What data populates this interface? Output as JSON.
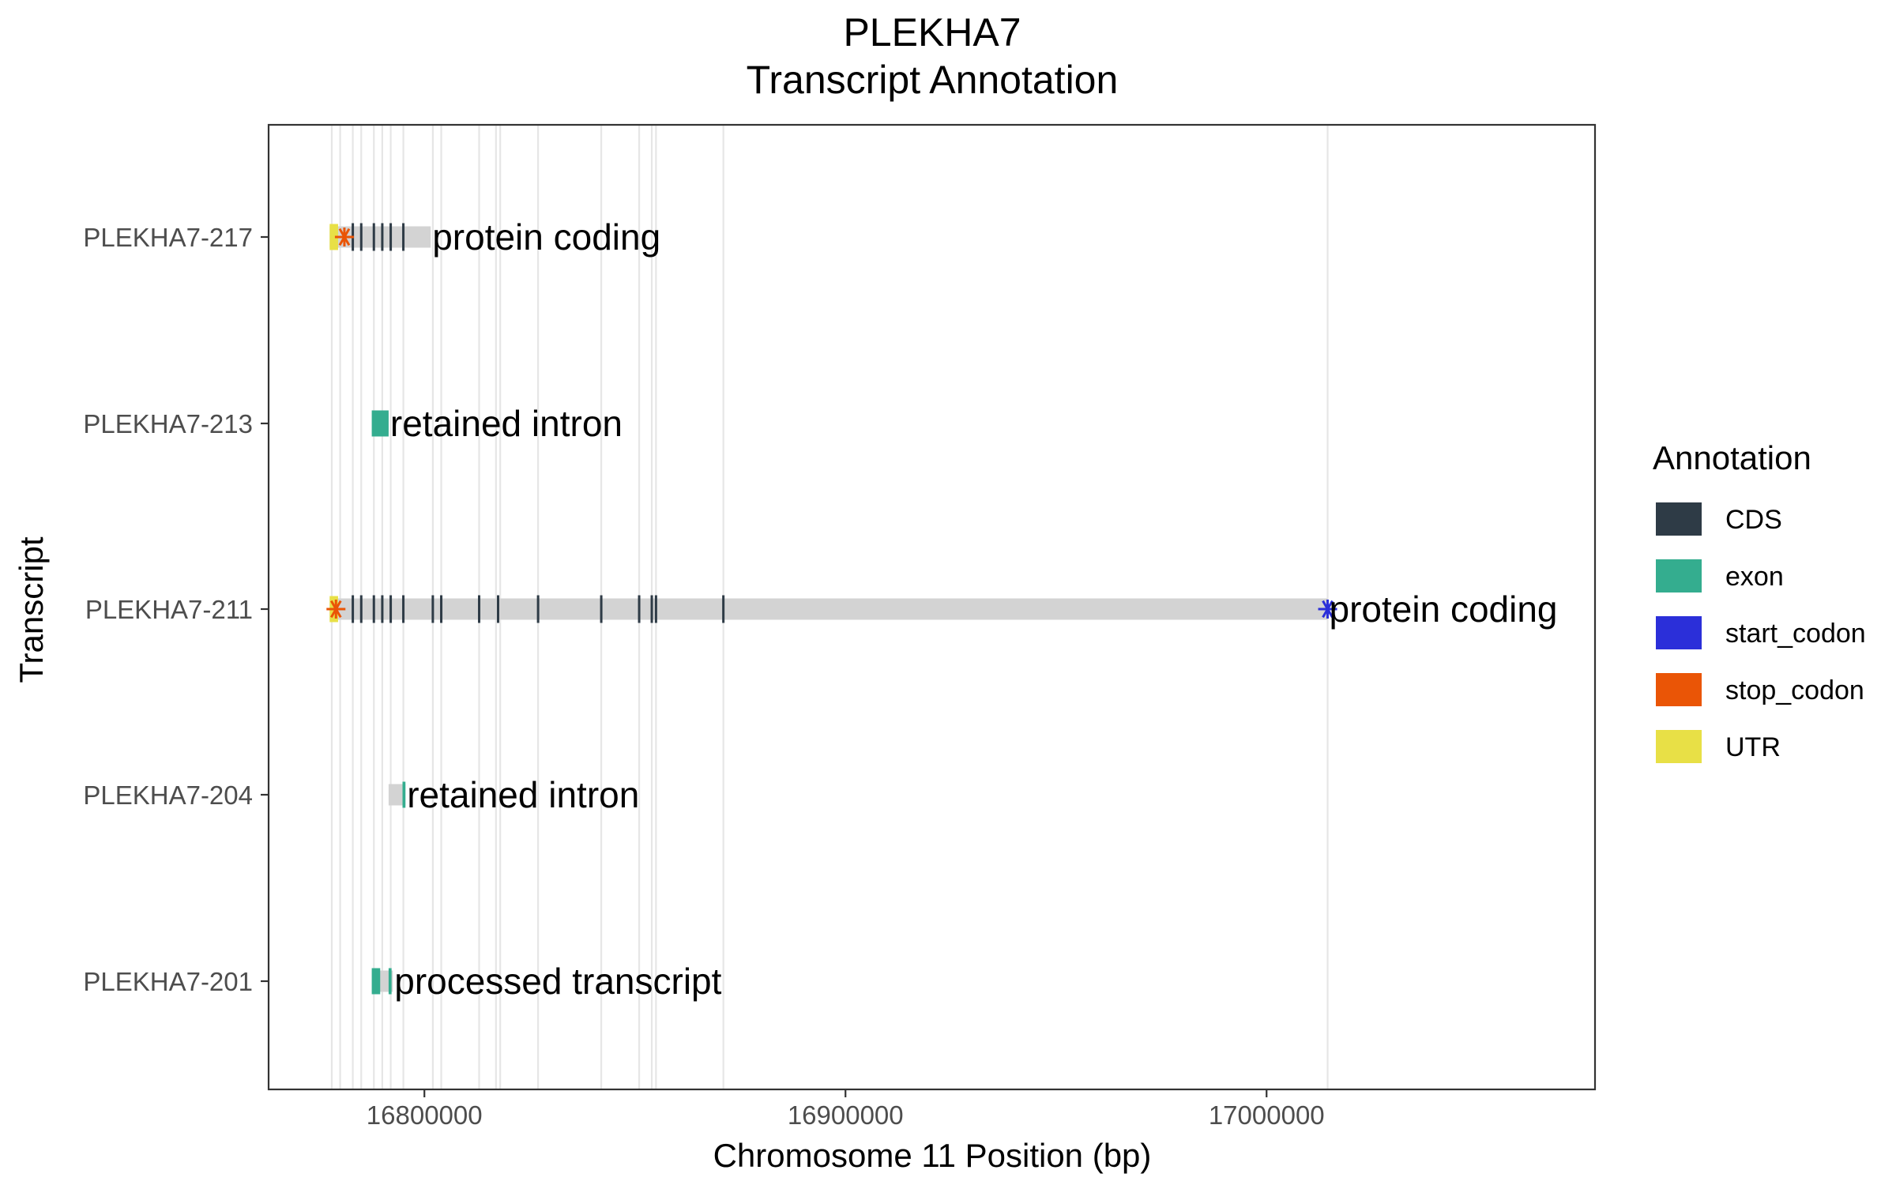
{
  "chart_data": {
    "type": "gantt-transcript",
    "title": "PLEKHA7",
    "subtitle": "Transcript Annotation",
    "xlabel": "Chromosome 11 Position (bp)",
    "ylabel": "Transcript",
    "xlim": [
      16763000,
      17078000
    ],
    "x_ticks": [
      16800000,
      16900000,
      17000000
    ],
    "x_tick_labels": [
      "16800000",
      "16900000",
      "17000000"
    ],
    "grid": "vertical-lines-at-feature-boundaries",
    "legend_position": "right",
    "legend": {
      "title": "Annotation",
      "entries": [
        {
          "label": "CDS",
          "color": "#2e3b46"
        },
        {
          "label": "exon",
          "color": "#34ad8f"
        },
        {
          "label": "start_codon",
          "color": "#2b2fd9"
        },
        {
          "label": "stop_codon",
          "color": "#ea5506"
        },
        {
          "label": "UTR",
          "color": "#e8e046"
        }
      ]
    },
    "transcript_body_color": "#d3d3d3",
    "gridline_positions": [
      16778000,
      16780000,
      16783000,
      16785000,
      16788000,
      16790000,
      16792000,
      16795000,
      16802000,
      16804000,
      16813000,
      16817000,
      16818000,
      16827000,
      16842000,
      16851000,
      16854000,
      16855000,
      16871000,
      17014500
    ],
    "transcripts": [
      {
        "name": "PLEKHA7-217",
        "biotype": "protein coding",
        "start": 16777500,
        "end": 16801500,
        "features": [
          {
            "type": "UTR",
            "start": 16777500,
            "end": 16779500
          },
          {
            "type": "stop_codon",
            "pos": 16781000
          },
          {
            "type": "CDS",
            "pos": 16783000
          },
          {
            "type": "CDS",
            "pos": 16785000
          },
          {
            "type": "CDS",
            "pos": 16788000
          },
          {
            "type": "CDS",
            "pos": 16790000
          },
          {
            "type": "CDS",
            "pos": 16792000
          },
          {
            "type": "CDS",
            "pos": 16795000
          }
        ]
      },
      {
        "name": "PLEKHA7-213",
        "biotype": "retained intron",
        "start": 16787500,
        "end": 16791500,
        "features": [
          {
            "type": "exon",
            "start": 16787500,
            "end": 16791500
          }
        ]
      },
      {
        "name": "PLEKHA7-211",
        "biotype": "protein coding",
        "start": 16777500,
        "end": 17014500,
        "features": [
          {
            "type": "UTR",
            "start": 16777500,
            "end": 16779500
          },
          {
            "type": "stop_codon",
            "pos": 16779000
          },
          {
            "type": "CDS",
            "pos": 16783000
          },
          {
            "type": "CDS",
            "pos": 16785000
          },
          {
            "type": "CDS",
            "pos": 16788000
          },
          {
            "type": "CDS",
            "pos": 16790000
          },
          {
            "type": "CDS",
            "pos": 16792000
          },
          {
            "type": "CDS",
            "pos": 16795000
          },
          {
            "type": "CDS",
            "pos": 16802000
          },
          {
            "type": "CDS",
            "pos": 16804000
          },
          {
            "type": "CDS",
            "pos": 16813000
          },
          {
            "type": "CDS",
            "pos": 16817500
          },
          {
            "type": "CDS",
            "pos": 16827000
          },
          {
            "type": "CDS",
            "pos": 16842000
          },
          {
            "type": "CDS",
            "pos": 16851000
          },
          {
            "type": "CDS",
            "pos": 16854000
          },
          {
            "type": "CDS",
            "pos": 16855000
          },
          {
            "type": "CDS",
            "pos": 16871000
          },
          {
            "type": "start_codon",
            "pos": 17014500
          }
        ]
      },
      {
        "name": "PLEKHA7-204",
        "biotype": "retained intron",
        "start": 16791500,
        "end": 16795500,
        "features": [
          {
            "type": "exon",
            "start": 16794800,
            "end": 16795500
          }
        ]
      },
      {
        "name": "PLEKHA7-201",
        "biotype": "processed transcript",
        "start": 16787500,
        "end": 16792500,
        "features": [
          {
            "type": "exon",
            "start": 16787500,
            "end": 16789500
          },
          {
            "type": "exon",
            "start": 16791500,
            "end": 16792200
          }
        ]
      }
    ]
  }
}
